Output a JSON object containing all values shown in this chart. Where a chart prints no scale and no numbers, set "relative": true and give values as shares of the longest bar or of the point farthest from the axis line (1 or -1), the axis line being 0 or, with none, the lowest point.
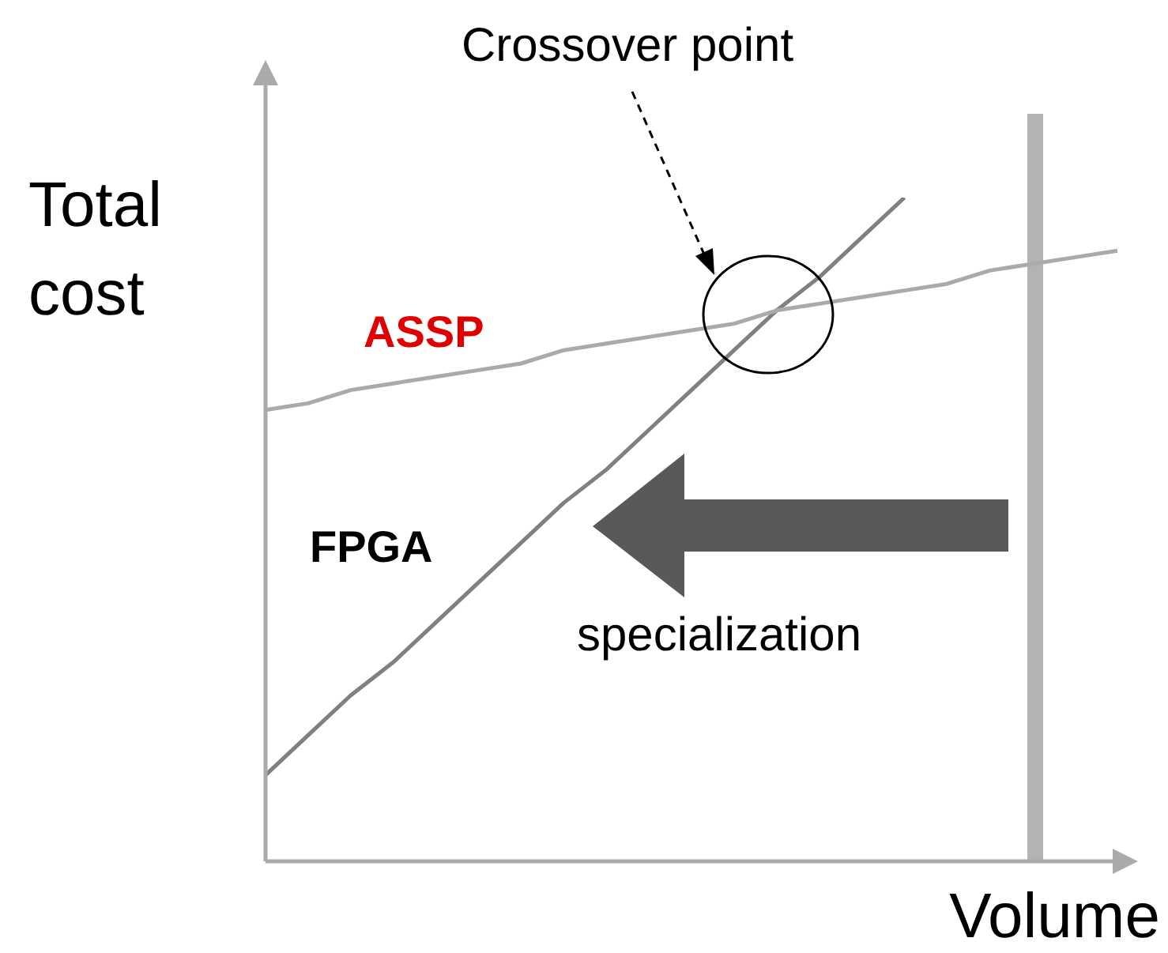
{
  "chart_data": {
    "type": "line",
    "relative": true,
    "ylabel": "Total cost",
    "xlabel": "Volume",
    "categories": [
      null,
      null,
      null,
      null,
      null,
      null,
      null,
      null,
      null,
      null,
      null,
      null,
      null,
      null,
      null,
      null,
      null,
      null,
      null,
      null,
      null
    ],
    "series": [
      {
        "name": "ASSP",
        "color": "#aaaaaa",
        "values": [
          0.68,
          0.69,
          0.71,
          0.72,
          0.73,
          0.74,
          0.75,
          0.77,
          0.78,
          0.79,
          0.8,
          0.81,
          0.83,
          0.84,
          0.85,
          0.86,
          0.87,
          0.89,
          0.9,
          0.91,
          0.92
        ]
      },
      {
        "name": "FPGA",
        "color": "#808080",
        "values": [
          0.13,
          0.19,
          0.25,
          0.3,
          0.36,
          0.42,
          0.48,
          0.54,
          0.59,
          0.65,
          0.71,
          0.77,
          0.83,
          0.88,
          0.94,
          1.0,
          null,
          null,
          null,
          null,
          null
        ]
      }
    ],
    "annotations": [
      "Crossover point",
      "specialization"
    ],
    "grid": false,
    "legend": false,
    "marker": "none",
    "line_style": "solid"
  }
}
